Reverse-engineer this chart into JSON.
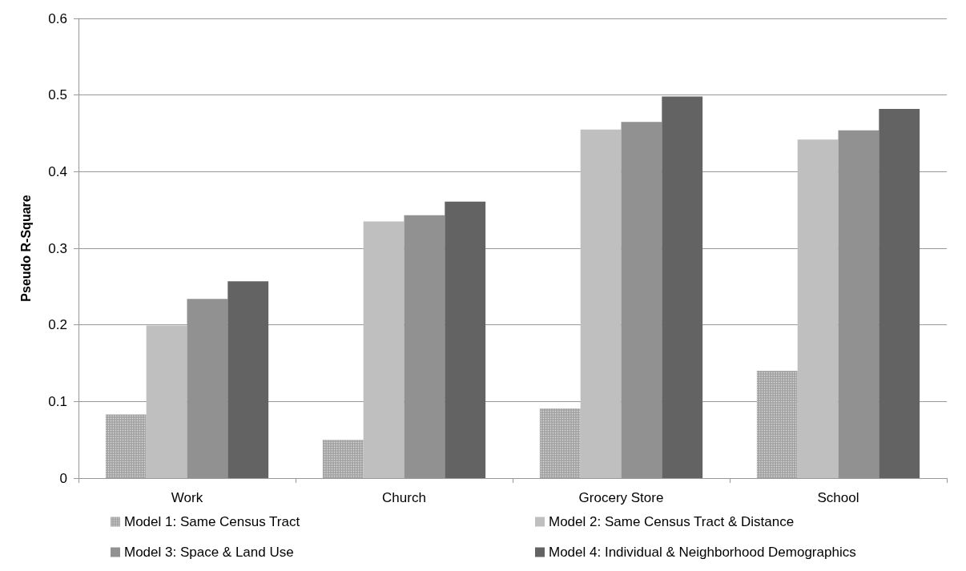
{
  "chart_data": {
    "type": "bar",
    "ylabel": "Pseudo R-Square",
    "categories": [
      "Work",
      "Church",
      "Grocery Store",
      "School"
    ],
    "series": [
      {
        "name": "Model 1: Same Census Tract",
        "color": "#a3a3a3",
        "values": [
          0.083,
          0.05,
          0.091,
          0.14
        ]
      },
      {
        "name": "Model 2: Same Census Tract & Distance",
        "color": "#bfbfbf",
        "values": [
          0.199,
          0.335,
          0.455,
          0.442
        ]
      },
      {
        "name": "Model 3: Space & Land Use",
        "color": "#919191",
        "values": [
          0.234,
          0.343,
          0.465,
          0.454
        ]
      },
      {
        "name": "Model 4: Individual & Neighborhood Demographics",
        "color": "#636363",
        "values": [
          0.257,
          0.361,
          0.498,
          0.482
        ]
      }
    ],
    "ylim": [
      0,
      0.6
    ],
    "yticks": [
      0,
      0.1,
      0.2,
      0.3,
      0.4,
      0.5,
      0.6
    ],
    "grid": "y",
    "legend": "bottom"
  }
}
